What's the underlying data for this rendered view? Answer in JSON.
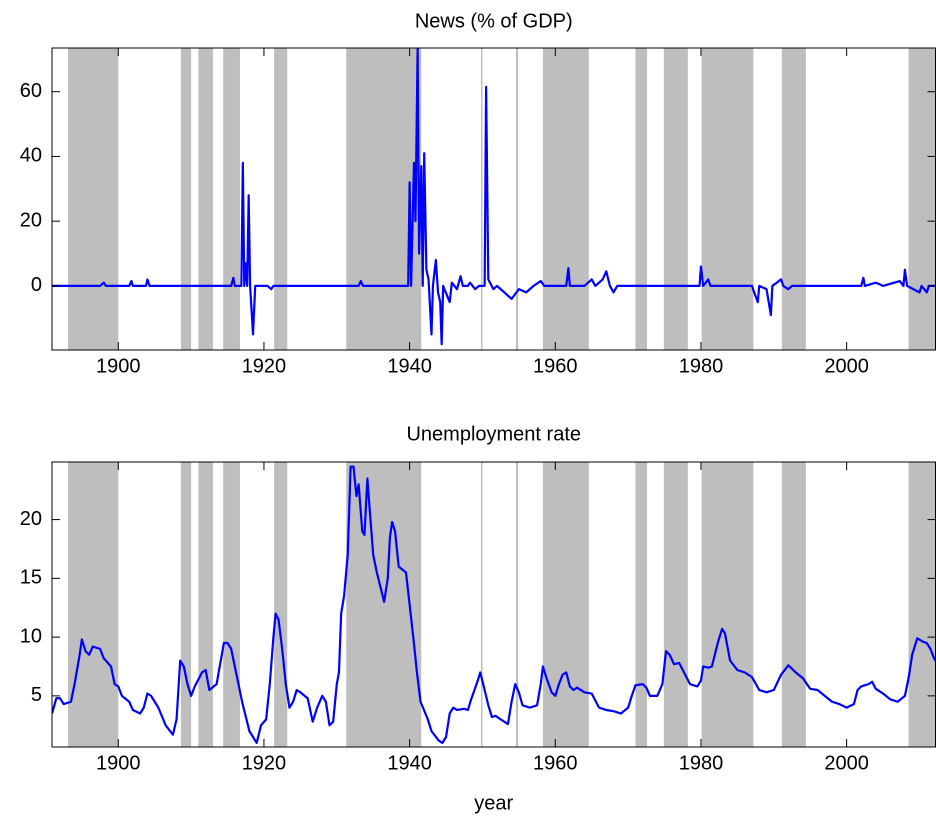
{
  "chart_data": [
    {
      "type": "line",
      "title": "News (% of GDP)",
      "xlim": [
        1890.9,
        2012.2
      ],
      "xticks": [
        1900,
        1920,
        1940,
        1960,
        1980,
        2000
      ],
      "ylim": [
        -19.8,
        73.5
      ],
      "yticks": [
        0,
        20,
        40,
        60
      ],
      "shade_color": "#bebebe",
      "shaded_regions": [
        [
          1893.1,
          1900.0
        ],
        [
          1908.6,
          1910.0
        ],
        [
          1911.0,
          1913.0
        ],
        [
          1914.4,
          1916.7
        ],
        [
          1921.4,
          1923.2
        ],
        [
          1931.3,
          1941.6
        ],
        [
          1949.8,
          1950.0
        ],
        [
          1954.6,
          1954.9
        ],
        [
          1958.3,
          1964.6
        ],
        [
          1971.0,
          1972.6
        ],
        [
          1974.9,
          1978.2
        ],
        [
          1980.1,
          1987.2
        ],
        [
          1991.1,
          1994.4
        ],
        [
          2008.5,
          2012.2
        ]
      ],
      "series": [
        {
          "name": "News",
          "color": "#0000ff",
          "x": [
            1890.9,
            1897.5,
            1898,
            1898.3,
            1901.5,
            1901.8,
            1902,
            1903.8,
            1904,
            1904.3,
            1915.5,
            1915.8,
            1916,
            1916.9,
            1917.1,
            1917.3,
            1917.5,
            1917.7,
            1917.9,
            1918.1,
            1918.5,
            1918.8,
            1920.5,
            1921,
            1921.3,
            1933,
            1933.3,
            1933.6,
            1939.8,
            1940,
            1940.2,
            1940.6,
            1940.8,
            1941.1,
            1941.3,
            1941.6,
            1941.8,
            1942,
            1942.3,
            1942.6,
            1943,
            1943.2,
            1943.6,
            1943.9,
            1944.2,
            1944.4,
            1944.6,
            1945.5,
            1945.8,
            1946.5,
            1947,
            1947.3,
            1948,
            1948.3,
            1949,
            1949.5,
            1950.3,
            1950.5,
            1950.8,
            1951.5,
            1952,
            1953,
            1954,
            1955,
            1956,
            1957,
            1958,
            1958.5,
            1961.5,
            1961.8,
            1962,
            1964,
            1965,
            1965.5,
            1966.5,
            1967,
            1967.5,
            1968,
            1968.5,
            1979.8,
            1980,
            1980.3,
            1981,
            1981.3,
            1987,
            1987.3,
            1987.8,
            1988,
            1989,
            1989.6,
            1989.8,
            1991,
            1991.3,
            1992,
            1992.5,
            2002,
            2002.3,
            2002.5,
            2004,
            2005,
            2007.3,
            2007.8,
            2008,
            2008.3,
            2010,
            2010.3,
            2011,
            2011.3,
            2012.2
          ],
          "values": [
            0,
            0,
            1,
            0,
            0,
            1.5,
            0,
            0,
            2,
            0,
            0,
            2.5,
            0,
            0,
            38,
            0,
            7,
            0,
            28,
            0,
            -15,
            0,
            0,
            -1,
            0,
            0,
            1.5,
            0,
            0,
            32,
            0,
            38,
            20,
            73.5,
            10,
            37,
            0,
            41,
            5,
            2,
            -15,
            0,
            8,
            -2,
            -5,
            -18,
            0,
            -5,
            1,
            -1,
            3,
            0,
            0,
            1,
            -1,
            0,
            0,
            61.5,
            2,
            -1,
            0,
            -2,
            -4,
            -1,
            -2,
            0,
            1.5,
            0,
            0,
            5.5,
            0,
            0,
            2,
            0,
            2,
            4.5,
            0,
            -2,
            0,
            0,
            6,
            0,
            2,
            0,
            0,
            -2,
            -5,
            0,
            -1,
            -9,
            0,
            2,
            0,
            -1,
            0,
            0,
            2.5,
            0,
            1,
            0,
            1.5,
            0,
            5,
            0,
            -2,
            0,
            -2,
            0,
            0
          ]
        }
      ]
    },
    {
      "type": "line",
      "title": "Unemployment rate",
      "xlabel": "year",
      "xlim": [
        1890.9,
        2012.2
      ],
      "xticks": [
        1900,
        1920,
        1940,
        1960,
        1980,
        2000
      ],
      "ylim": [
        0.65,
        24.9
      ],
      "yticks": [
        5,
        10,
        15,
        20
      ],
      "shade_color": "#bebebe",
      "shaded_regions": [
        [
          1893.1,
          1900.0
        ],
        [
          1908.6,
          1910.0
        ],
        [
          1911.0,
          1913.0
        ],
        [
          1914.4,
          1916.7
        ],
        [
          1921.4,
          1923.2
        ],
        [
          1931.3,
          1941.6
        ],
        [
          1949.8,
          1950.0
        ],
        [
          1954.6,
          1954.9
        ],
        [
          1958.3,
          1964.6
        ],
        [
          1971.0,
          1972.6
        ],
        [
          1974.9,
          1978.2
        ],
        [
          1980.1,
          1987.2
        ],
        [
          1991.1,
          1994.4
        ],
        [
          2008.5,
          2012.2
        ]
      ],
      "series": [
        {
          "name": "Unemployment rate",
          "color": "#0000ff",
          "x": [
            1890.9,
            1891.5,
            1892,
            1892.5,
            1893.5,
            1894,
            1894.7,
            1895,
            1895.5,
            1896,
            1896.5,
            1897.5,
            1898,
            1899,
            1899.5,
            1900,
            1900.5,
            1901.5,
            1902,
            1903,
            1903.5,
            1904,
            1904.5,
            1905.5,
            1906.5,
            1907.5,
            1908,
            1908.3,
            1908.5,
            1909,
            1909.5,
            1910,
            1910.5,
            1911.5,
            1912,
            1912.5,
            1913.5,
            1914.5,
            1915,
            1915.5,
            1916.5,
            1917,
            1918,
            1918.5,
            1919,
            1919.6,
            1920.3,
            1920.8,
            1921.3,
            1921.6,
            1922,
            1922.5,
            1923,
            1923.5,
            1924,
            1924.5,
            1925,
            1926,
            1926.7,
            1927.3,
            1928,
            1928.5,
            1929,
            1929.5,
            1930,
            1930.3,
            1930.6,
            1931,
            1931.5,
            1931.9,
            1932.3,
            1932.7,
            1933,
            1933.5,
            1933.8,
            1934.2,
            1934.5,
            1935,
            1935.5,
            1936.5,
            1937,
            1937.3,
            1937.6,
            1938,
            1938.5,
            1939.5,
            1940.5,
            1941,
            1941.5,
            1942.5,
            1943,
            1944,
            1944.5,
            1945,
            1945.5,
            1946,
            1946.5,
            1947.5,
            1948,
            1948.5,
            1949.3,
            1949.7,
            1950.3,
            1950.8,
            1951.3,
            1951.8,
            1952.5,
            1953.5,
            1954,
            1954.5,
            1955,
            1955.5,
            1956.5,
            1957.5,
            1958,
            1958.3,
            1958.8,
            1959.5,
            1960,
            1960.5,
            1961,
            1961.5,
            1962,
            1962.5,
            1963,
            1964,
            1965,
            1966,
            1967,
            1968,
            1969,
            1970,
            1970.5,
            1971,
            1972,
            1972.5,
            1973,
            1974,
            1974.7,
            1975.2,
            1975.7,
            1976.3,
            1977,
            1977.5,
            1978.5,
            1979.5,
            1980,
            1980.3,
            1981,
            1981.5,
            1982.3,
            1982.9,
            1983.3,
            1984,
            1985,
            1986,
            1987,
            1988,
            1989,
            1990,
            1991,
            1992,
            1993,
            1994,
            1995,
            1996,
            1997,
            1998,
            1999,
            2000,
            2001,
            2001.5,
            2002,
            2003,
            2003.5,
            2004,
            2005,
            2006,
            2007,
            2008,
            2008.5,
            2009,
            2009.7,
            2010.5,
            2011,
            2011.5,
            2012,
            2012.2
          ],
          "values": [
            3.5,
            4.8,
            4.8,
            4.3,
            4.5,
            6,
            8.5,
            9.8,
            8.8,
            8.5,
            9.2,
            9,
            8.2,
            7.5,
            6,
            5.8,
            5,
            4.5,
            3.8,
            3.5,
            4,
            5.2,
            5,
            4,
            2.5,
            1.7,
            3,
            6,
            8,
            7.5,
            6,
            5,
            5.8,
            7,
            7.2,
            5.5,
            6,
            9.5,
            9.5,
            9,
            6,
            4.5,
            2,
            1.5,
            1,
            2.5,
            3,
            6,
            10,
            12,
            11.5,
            9,
            6,
            4,
            4.5,
            5.5,
            5.3,
            4.8,
            2.8,
            4,
            5,
            4.5,
            2.5,
            2.8,
            6,
            7,
            12,
            13.5,
            17,
            24.5,
            24.5,
            22,
            23,
            19,
            18.7,
            23.5,
            21,
            17,
            15.5,
            13,
            15,
            18.5,
            19.8,
            19,
            16,
            15.5,
            10,
            7,
            4.5,
            3,
            2,
            1.2,
            1,
            1.5,
            3.5,
            4,
            3.8,
            3.9,
            3.8,
            4.8,
            6.2,
            7,
            5.5,
            4.2,
            3.2,
            3.3,
            3,
            2.6,
            4.5,
            6,
            5.3,
            4.2,
            4,
            4.2,
            6,
            7.5,
            6.5,
            5.3,
            5,
            6,
            6.8,
            7,
            5.8,
            5.5,
            5.7,
            5.3,
            5.2,
            4,
            3.8,
            3.7,
            3.5,
            4,
            5,
            5.9,
            6,
            5.7,
            5,
            5,
            6,
            8.8,
            8.5,
            7.7,
            7.8,
            7.2,
            6,
            5.8,
            6.3,
            7.5,
            7.4,
            7.5,
            9.5,
            10.7,
            10.3,
            8,
            7.2,
            7,
            6.6,
            5.5,
            5.3,
            5.5,
            6.8,
            7.6,
            7,
            6.5,
            5.6,
            5.5,
            5,
            4.5,
            4.3,
            4,
            4.3,
            5.5,
            5.8,
            6,
            6.2,
            5.6,
            5.2,
            4.7,
            4.5,
            5,
            6.5,
            8.5,
            9.9,
            9.6,
            9.5,
            9,
            8.2,
            8
          ]
        }
      ]
    }
  ]
}
